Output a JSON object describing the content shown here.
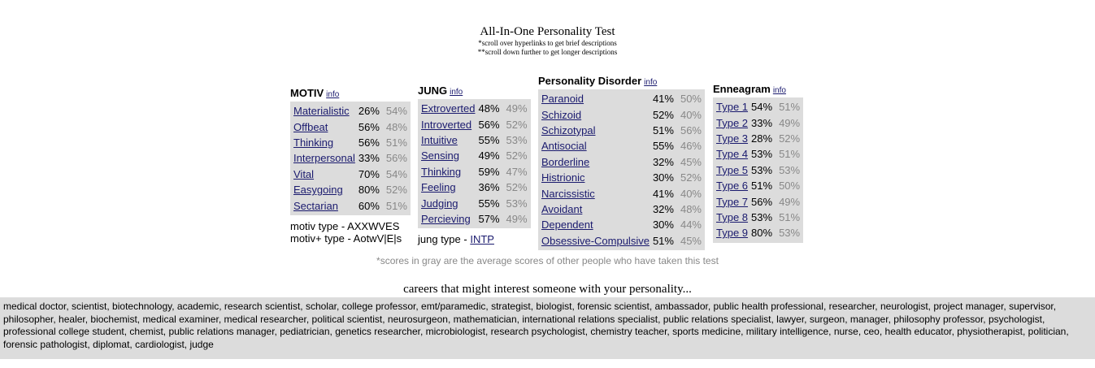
{
  "header": {
    "title": "All-In-One Personality Test",
    "note1": "*scroll over hyperlinks to get brief descriptions",
    "note2": "**scroll down further to get longer descriptions"
  },
  "info_label": "info",
  "motiv": {
    "heading": "MOTIV",
    "rows": [
      {
        "label": "Materialistic",
        "score": "26%",
        "avg": "54%"
      },
      {
        "label": "Offbeat",
        "score": "56%",
        "avg": "48%"
      },
      {
        "label": "Thinking",
        "score": "56%",
        "avg": "51%"
      },
      {
        "label": "Interpersonal",
        "score": "33%",
        "avg": "56%"
      },
      {
        "label": "Vital",
        "score": "70%",
        "avg": "54%"
      },
      {
        "label": "Easygoing",
        "score": "80%",
        "avg": "52%"
      },
      {
        "label": "Sectarian",
        "score": "60%",
        "avg": "51%"
      }
    ],
    "type_line": "motiv type - AXXWVES",
    "type_plus_line": "motiv+ type - AotwV|E|s"
  },
  "jung": {
    "heading": "JUNG",
    "rows": [
      {
        "label": "Extroverted",
        "score": "48%",
        "avg": "49%"
      },
      {
        "label": "Introverted",
        "score": "56%",
        "avg": "52%"
      },
      {
        "label": "Intuitive",
        "score": "55%",
        "avg": "53%"
      },
      {
        "label": "Sensing",
        "score": "49%",
        "avg": "52%"
      },
      {
        "label": "Thinking",
        "score": "59%",
        "avg": "47%"
      },
      {
        "label": "Feeling",
        "score": "36%",
        "avg": "52%"
      },
      {
        "label": "Judging",
        "score": "55%",
        "avg": "53%"
      },
      {
        "label": "Percieving",
        "score": "57%",
        "avg": "49%"
      }
    ],
    "type_prefix": "jung type - ",
    "type_value": "INTP"
  },
  "pd": {
    "heading": "Personality Disorder",
    "rows": [
      {
        "label": "Paranoid",
        "score": "41%",
        "avg": "50%"
      },
      {
        "label": "Schizoid",
        "score": "52%",
        "avg": "40%"
      },
      {
        "label": "Schizotypal",
        "score": "51%",
        "avg": "56%"
      },
      {
        "label": "Antisocial",
        "score": "55%",
        "avg": "46%"
      },
      {
        "label": "Borderline",
        "score": "32%",
        "avg": "45%"
      },
      {
        "label": "Histrionic",
        "score": "30%",
        "avg": "52%"
      },
      {
        "label": "Narcissistic",
        "score": "41%",
        "avg": "40%"
      },
      {
        "label": "Avoidant",
        "score": "32%",
        "avg": "48%"
      },
      {
        "label": "Dependent",
        "score": "30%",
        "avg": "44%"
      },
      {
        "label": "Obsessive-Compulsive",
        "score": "51%",
        "avg": "45%"
      }
    ]
  },
  "enneagram": {
    "heading": "Enneagram",
    "rows": [
      {
        "label": "Type 1",
        "score": "54%",
        "avg": "51%"
      },
      {
        "label": "Type 2",
        "score": "33%",
        "avg": "49%"
      },
      {
        "label": "Type 3",
        "score": "28%",
        "avg": "52%"
      },
      {
        "label": "Type 4",
        "score": "53%",
        "avg": "51%"
      },
      {
        "label": "Type 5",
        "score": "53%",
        "avg": "53%"
      },
      {
        "label": "Type 6",
        "score": "51%",
        "avg": "50%"
      },
      {
        "label": "Type 7",
        "score": "56%",
        "avg": "49%"
      },
      {
        "label": "Type 8",
        "score": "53%",
        "avg": "51%"
      },
      {
        "label": "Type 9",
        "score": "80%",
        "avg": "53%"
      }
    ]
  },
  "gray_note": "*scores in gray are the average scores of other people who have taken this test",
  "careers_heading": "careers that might interest someone with your personality...",
  "careers_text": "medical doctor, scientist, biotechnology, academic, research scientist, scholar, college professor, emt/paramedic, strategist, biologist, forensic scientist, ambassador, public health professional, researcher, neurologist, project manager, supervisor, philosopher, healer, biochemist, medical examiner, medical researcher, political scientist, neurosurgeon, mathematician, international relations specialist, public relations specialist, lawyer, surgeon, manager, philosophy professor, psychologist, professional college student, chemist, public relations manager, pediatrician, genetics researcher, microbiologist, research psychologist, chemistry teacher, sports medicine, military intelligence, nurse, ceo, health educator, physiotherapist, politician, forensic pathologist, diplomat, cardiologist, judge",
  "colors": {
    "link": "#1a1a6e",
    "box_bg": "#dcdcdc",
    "avg_text": "#888888"
  }
}
